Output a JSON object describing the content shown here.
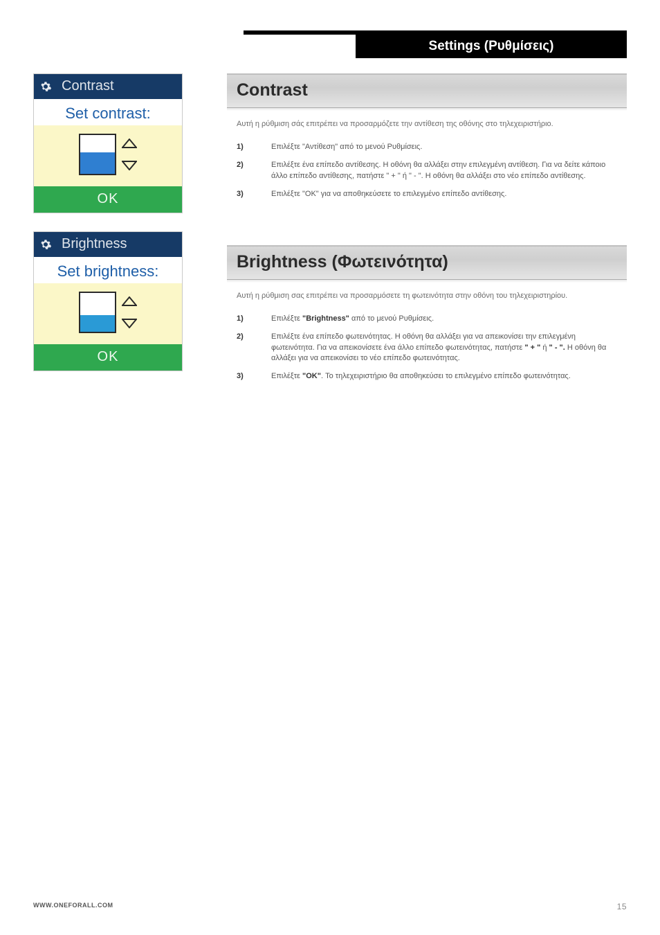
{
  "topbar": {
    "title": "Settings (Ρυθμίσεις)"
  },
  "widgets": {
    "contrast": {
      "title": "Contrast",
      "subtitle": "Set contrast:",
      "ok": "OK",
      "fill_pct": 55,
      "fill_color": "#2f7fd1",
      "box_bg": "#ffffff"
    },
    "brightness": {
      "title": "Brightness",
      "subtitle": "Set brightness:",
      "ok": "OK",
      "fill_pct": 42,
      "fill_color": "#2a9ad6",
      "box_bg": "#ffffff"
    }
  },
  "sections": {
    "contrast": {
      "heading": "Contrast",
      "intro": "Αυτή η ρύθμιση σάς επιτρέπει να προσαρμόζετε την αντίθεση της οθόνης στο τηλεχειριστήριο.",
      "steps": [
        {
          "n": "1)",
          "t": "Επιλέξτε \"Αντίθεση\" από το μενού Ρυθμίσεις."
        },
        {
          "n": "2)",
          "t": "Επιλέξτε ένα επίπεδο αντίθεσης. Η οθόνη θα αλλάξει στην επιλεγμένη αντίθεση. Για να δείτε κάποιο άλλο επίπεδο αντίθεσης, πατήστε \" + \" ή \" - \". Η οθόνη θα αλλάξει στο νέο επίπεδο αντίθεσης."
        },
        {
          "n": "3)",
          "t": "Επιλέξτε \"OK\" για να αποθηκεύσετε το επιλεγμένο επίπεδο αντίθεσης."
        }
      ]
    },
    "brightness": {
      "heading": "Brightness (Φωτεινότητα)",
      "intro": "Αυτή η ρύθμιση σας επιτρέπει να προσαρμόσετε τη φωτεινότητα στην οθόνη του τηλεχειριστηρίου.",
      "steps": [
        {
          "n": "1)",
          "html": "Επιλέξτε <b>\"Brightness\"</b> από το μενού Ρυθμίσεις."
        },
        {
          "n": "2)",
          "html": "Επιλέξτε ένα επίπεδο φωτεινότητας. Η οθόνη θα αλλάξει για να απεικονίσει την επιλεγμένη φωτεινότητα. Για να απεικονίσετε ένα άλλο επίπεδο φωτεινότητας, πατήστε <b>\" + \"</b> ή <b>\" - \".</b> Η οθόνη θα αλλάξει για να απεικονίσει το νέο επίπεδο φωτεινότητας."
        },
        {
          "n": "3)",
          "html": "Επιλέξτε <b>\"OK\"</b>. Το τηλεχειριστήριο θα αποθηκεύσει το επιλεγμένο επίπεδο φωτεινότητας."
        }
      ]
    }
  },
  "footer": {
    "url": "WWW.ONEFORALL.COM",
    "page": "15"
  },
  "colors": {
    "topbar_bg": "#000000",
    "widget_title_bg": "#163a66",
    "widget_sub_color": "#1f5fa8",
    "widget_body_bg": "#fbf7c8",
    "ok_bg": "#2fa84f",
    "section_header_from": "#d9d9d9",
    "section_header_to": "#e5e5e5"
  }
}
